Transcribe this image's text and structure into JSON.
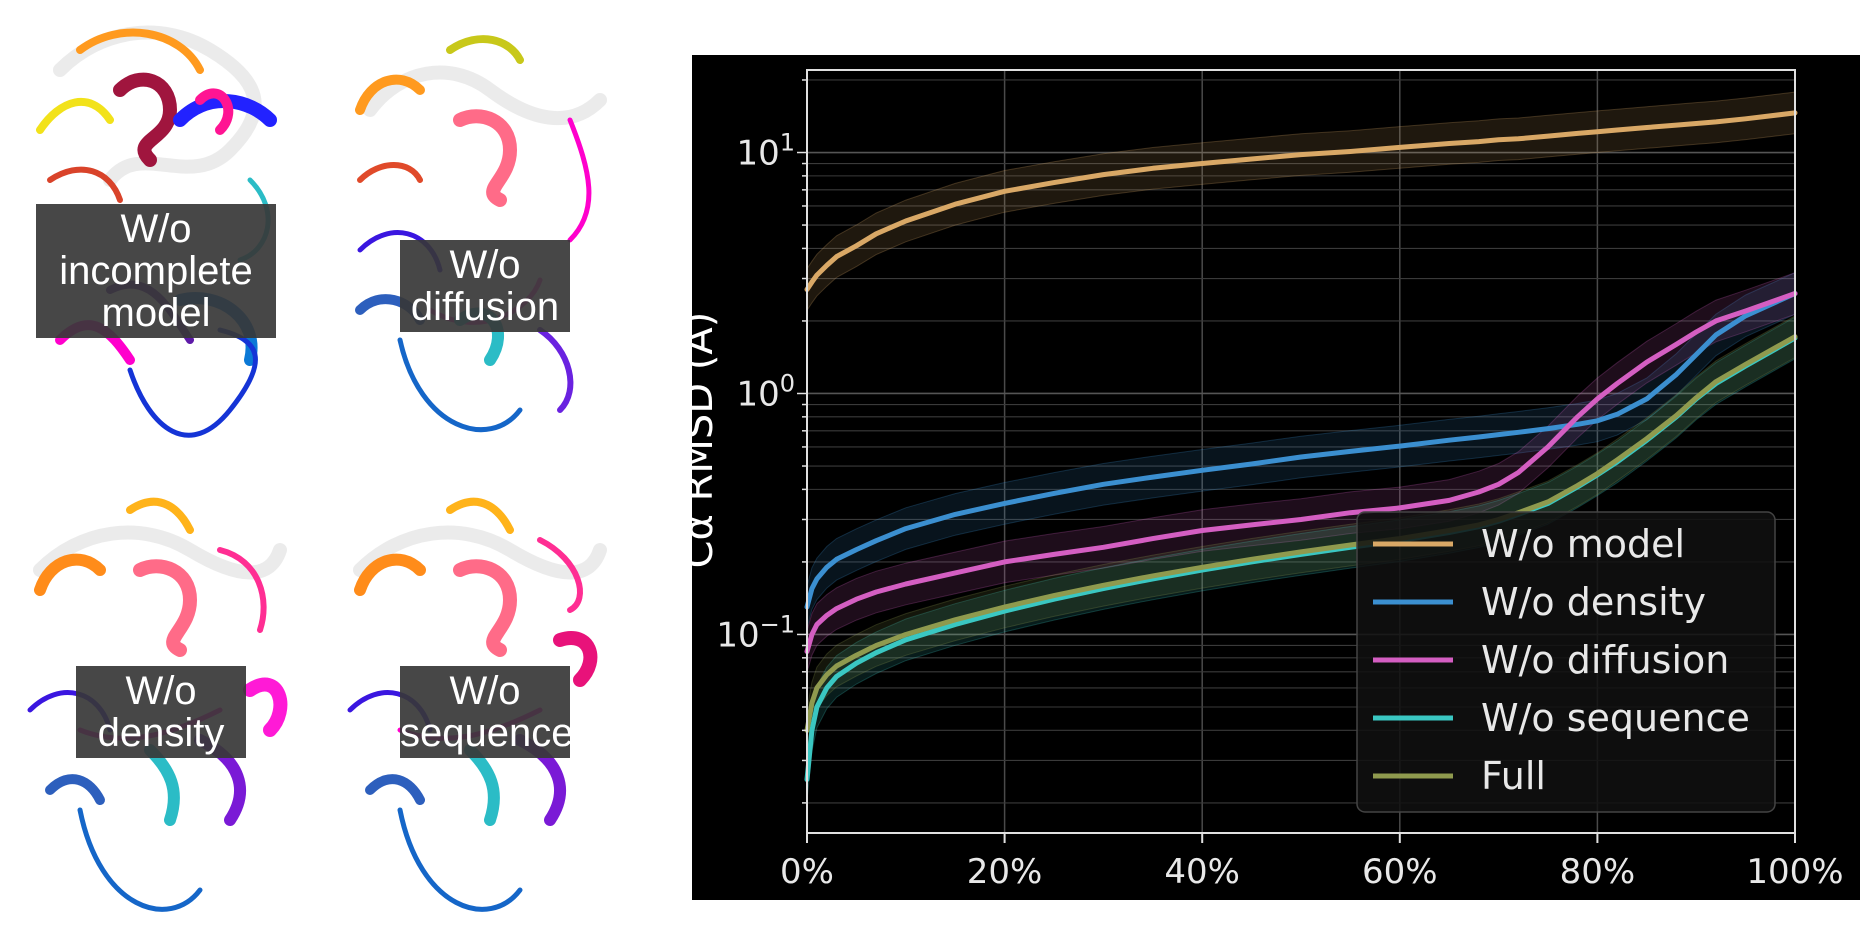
{
  "structures": [
    {
      "label_lines": [
        "W/o",
        "incomplete",
        "model"
      ]
    },
    {
      "label_lines": [
        "W/o",
        "diffusion"
      ]
    },
    {
      "label_lines": [
        "W/o",
        "density"
      ]
    },
    {
      "label_lines": [
        "W/o",
        "sequence"
      ]
    }
  ],
  "chart_data": {
    "type": "line",
    "title": "",
    "xlabel": "",
    "ylabel": "Cα RMSD (Å)",
    "x_scale": "linear",
    "y_scale": "log",
    "xlim": [
      0,
      100
    ],
    "ylim": [
      0.015,
      22
    ],
    "x_ticks": [
      "0%",
      "20%",
      "40%",
      "60%",
      "80%",
      "100%"
    ],
    "y_ticks": [
      {
        "value": 10,
        "label": "10^1"
      },
      {
        "value": 1,
        "label": "10^0"
      },
      {
        "value": 0.1,
        "label": "10^-1"
      }
    ],
    "grid": true,
    "background": "#000000",
    "legend_position": "lower-right",
    "x": [
      0,
      0.5,
      1,
      2,
      3,
      5,
      7,
      10,
      15,
      20,
      25,
      30,
      35,
      40,
      45,
      50,
      55,
      60,
      65,
      68,
      70,
      72,
      75,
      78,
      80,
      82,
      85,
      88,
      90,
      92,
      95,
      100
    ],
    "series": [
      {
        "name": "W/o model",
        "color": "#d9a866",
        "values": [
          2.7,
          2.9,
          3.1,
          3.4,
          3.7,
          4.1,
          4.6,
          5.2,
          6.1,
          6.9,
          7.5,
          8.1,
          8.6,
          9.0,
          9.4,
          9.8,
          10.1,
          10.5,
          10.9,
          11.1,
          11.3,
          11.4,
          11.7,
          12.0,
          12.2,
          12.4,
          12.7,
          13.0,
          13.2,
          13.4,
          13.8,
          14.6
        ]
      },
      {
        "name": "W/o density",
        "color": "#3b8fd0",
        "values": [
          0.13,
          0.155,
          0.17,
          0.19,
          0.205,
          0.225,
          0.245,
          0.275,
          0.315,
          0.35,
          0.385,
          0.42,
          0.45,
          0.48,
          0.51,
          0.545,
          0.575,
          0.605,
          0.64,
          0.66,
          0.675,
          0.69,
          0.715,
          0.745,
          0.77,
          0.82,
          0.95,
          1.2,
          1.45,
          1.75,
          2.1,
          2.6
        ]
      },
      {
        "name": "W/o diffusion",
        "color": "#d45ec2",
        "values": [
          0.085,
          0.1,
          0.11,
          0.12,
          0.128,
          0.14,
          0.15,
          0.162,
          0.18,
          0.2,
          0.215,
          0.23,
          0.25,
          0.27,
          0.285,
          0.3,
          0.32,
          0.335,
          0.36,
          0.39,
          0.42,
          0.47,
          0.6,
          0.8,
          0.95,
          1.1,
          1.35,
          1.6,
          1.8,
          2.0,
          2.2,
          2.6
        ]
      },
      {
        "name": "W/o sequence",
        "color": "#3ac7c2",
        "values": [
          0.025,
          0.04,
          0.05,
          0.06,
          0.067,
          0.076,
          0.084,
          0.095,
          0.11,
          0.125,
          0.14,
          0.155,
          0.17,
          0.185,
          0.2,
          0.215,
          0.23,
          0.245,
          0.265,
          0.28,
          0.295,
          0.315,
          0.35,
          0.41,
          0.46,
          0.52,
          0.64,
          0.8,
          0.95,
          1.1,
          1.3,
          1.7
        ]
      },
      {
        "name": "Full",
        "color": "#8f9a4e",
        "values": [
          0.04,
          0.052,
          0.06,
          0.068,
          0.074,
          0.082,
          0.09,
          0.1,
          0.115,
          0.13,
          0.145,
          0.16,
          0.175,
          0.19,
          0.205,
          0.22,
          0.235,
          0.25,
          0.27,
          0.285,
          0.3,
          0.32,
          0.355,
          0.415,
          0.465,
          0.53,
          0.65,
          0.81,
          0.96,
          1.12,
          1.32,
          1.72
        ]
      }
    ]
  }
}
